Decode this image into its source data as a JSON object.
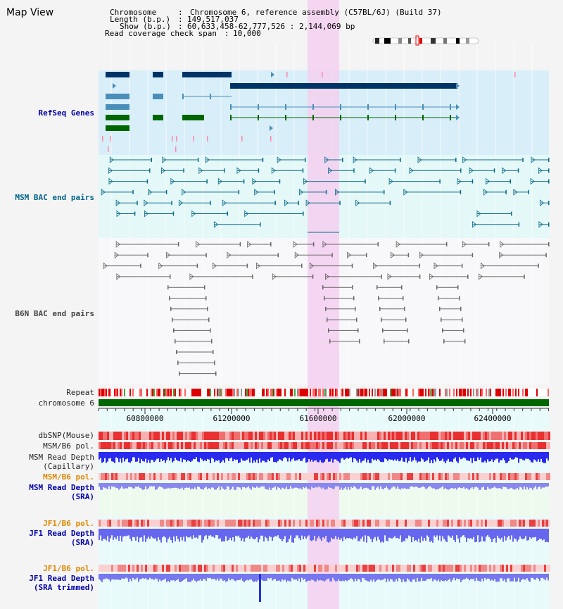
{
  "header": {
    "title": "Map View",
    "chromosome_key": "Chromosome",
    "chromosome_value": "Chromosome 6, reference assembly (C57BL/6J) (Build 37)",
    "length_key": "Length (b.p.)",
    "length_value": "149,517,037",
    "show_key": "Show (b.p.)",
    "show_value": "60,633,458-62,777,526 : 2,144,069 bp",
    "coverage_key": "Read coverage check span",
    "coverage_value": "10,000"
  },
  "tracks": {
    "refseq": "RefSeq Genes",
    "msm_bac": "MSM BAC end pairs",
    "b6n_bac": "B6N BAC end pairs",
    "repeat": "Repeat",
    "chromosome": "chromosome 6",
    "dbsnp": "dbSNP(Mouse)",
    "msm_b6_pol_1": "MSM/B6 pol.",
    "msm_depth_cap": "MSM Read Depth\n(Capillary)",
    "msm_b6_pol_2": "MSM/B6 pol.",
    "msm_depth_sra": "MSM Read Depth\n(SRA)",
    "jf1_b6_pol_1": "JF1/B6 pol.",
    "jf1_depth_sra": "JF1 Read Depth\n(SRA)",
    "jf1_b6_pol_2": "JF1/B6 pol.",
    "jf1_depth_trim": "JF1 Read Depth\n(SRA trimmed)"
  },
  "axis": {
    "ticks": [
      "60800000",
      "61200000",
      "61600000",
      "62000000",
      "62400000"
    ]
  },
  "colors": {
    "refseq_label": "#0000aa",
    "msm_label": "#006688",
    "b6n_label": "#444444",
    "orange_label": "#dd8800",
    "depth_label": "#0000aa",
    "highlight": "#f5d0f0",
    "chromosome_bar": "#006600"
  }
}
